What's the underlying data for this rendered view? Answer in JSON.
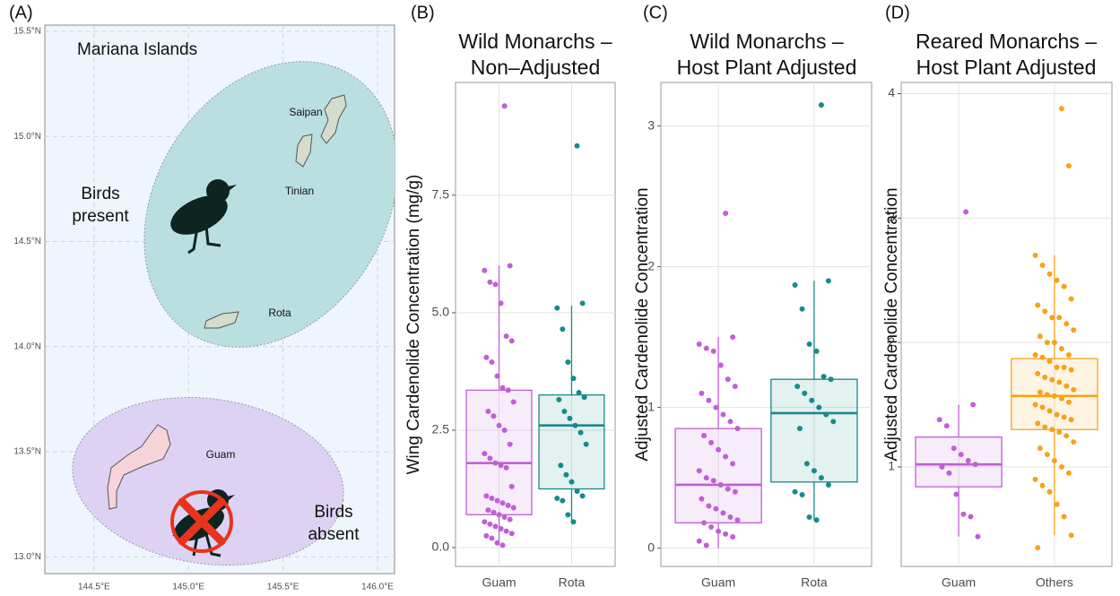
{
  "chart_data": [
    {
      "type": "map",
      "panel_label": "(A)",
      "title": "Mariana Islands",
      "xlim": [
        144.24,
        146.09
      ],
      "ylim": [
        12.92,
        15.53
      ],
      "xticks": [
        {
          "value": 144.5,
          "label": "144.5°E"
        },
        {
          "value": 145.0,
          "label": "145.0°E"
        },
        {
          "value": 145.5,
          "label": "145.5°E"
        },
        {
          "value": 146.0,
          "label": "146.0°E"
        }
      ],
      "yticks": [
        {
          "value": 13.0,
          "label": "13.0°N"
        },
        {
          "value": 13.5,
          "label": "13.5°N"
        },
        {
          "value": 14.0,
          "label": "14.0°N"
        },
        {
          "value": 14.5,
          "label": "14.5°N"
        },
        {
          "value": 15.0,
          "label": "15.0°N"
        },
        {
          "value": 15.5,
          "label": "15.5°N"
        }
      ],
      "grid": true,
      "regions": [
        [
          "Birds",
          "present"
        ],
        [
          "Birds",
          "absent"
        ]
      ],
      "islands": [
        "Saipan",
        "Tinian",
        "Rota",
        "Guam"
      ]
    },
    {
      "type": "box",
      "panel_label": "(B)",
      "title": [
        "Wild Monarchs –",
        "Non–Adjusted"
      ],
      "ylabel": "Wing Cardenolide Concentration (mg/g)",
      "categories": [
        "Guam",
        "Rota"
      ],
      "ylim": [
        -0.4,
        9.9
      ],
      "yticks": [
        {
          "value": 0,
          "label": "0.0"
        },
        2.5,
        {
          "value": 5,
          "label": "5.0"
        },
        7.5
      ],
      "grid": true,
      "boxes": [
        {
          "color": "#c05fd6",
          "low": 0.05,
          "q1": 0.7,
          "median": 1.8,
          "q3": 3.35,
          "high": 6.0,
          "points": [
            9.4,
            6.0,
            5.9,
            5.65,
            5.6,
            5.2,
            4.5,
            4.4,
            4.05,
            3.95,
            3.65,
            3.4,
            3.35,
            3.1,
            2.9,
            2.8,
            2.6,
            2.5,
            2.2,
            2.0,
            1.9,
            1.8,
            1.75,
            1.7,
            1.3,
            1.1,
            1.05,
            1.0,
            0.95,
            0.9,
            0.85,
            0.8,
            0.75,
            0.7,
            0.65,
            0.6,
            0.55,
            0.5,
            0.45,
            0.4,
            0.35,
            0.3,
            0.25,
            0.2,
            0.1,
            0.05
          ]
        },
        {
          "color": "#178a8a",
          "low": 0.55,
          "q1": 1.25,
          "median": 2.6,
          "q3": 3.25,
          "high": 5.15,
          "points": [
            8.55,
            5.2,
            5.1,
            4.65,
            3.95,
            3.6,
            3.3,
            3.2,
            3.15,
            2.9,
            2.75,
            2.6,
            2.45,
            2.2,
            1.75,
            1.55,
            1.4,
            1.2,
            1.1,
            1.05,
            1.0,
            0.7,
            0.55
          ]
        }
      ]
    },
    {
      "type": "box",
      "panel_label": "(C)",
      "title": [
        "Wild Monarchs –",
        "Host Plant Adjusted"
      ],
      "ylabel": "Adjusted Cardenolide Concentration",
      "categories": [
        "Guam",
        "Rota"
      ],
      "ylim": [
        -0.13,
        3.31
      ],
      "yticks": [
        0,
        1,
        2,
        3
      ],
      "grid": true,
      "boxes": [
        {
          "color": "#c05fd6",
          "low": 0.0,
          "q1": 0.18,
          "median": 0.45,
          "q3": 0.85,
          "high": 1.5,
          "points": [
            2.38,
            1.5,
            1.45,
            1.42,
            1.4,
            1.3,
            1.2,
            1.15,
            1.1,
            1.05,
            1.0,
            0.95,
            0.9,
            0.85,
            0.8,
            0.75,
            0.7,
            0.65,
            0.6,
            0.55,
            0.5,
            0.48,
            0.45,
            0.42,
            0.4,
            0.35,
            0.3,
            0.28,
            0.25,
            0.22,
            0.2,
            0.18,
            0.15,
            0.12,
            0.1,
            0.08,
            0.05,
            0.02
          ]
        },
        {
          "color": "#178a8a",
          "low": 0.2,
          "q1": 0.47,
          "median": 0.96,
          "q3": 1.2,
          "high": 1.9,
          "points": [
            3.15,
            1.9,
            1.87,
            1.7,
            1.45,
            1.4,
            1.22,
            1.2,
            1.15,
            1.1,
            1.05,
            1.0,
            0.95,
            0.9,
            0.85,
            0.6,
            0.55,
            0.5,
            0.45,
            0.4,
            0.38,
            0.22,
            0.2
          ]
        }
      ]
    },
    {
      "type": "box",
      "panel_label": "(D)",
      "title": [
        "Reared Monarchs –",
        "Host Plant Adjusted"
      ],
      "ylabel": "Adjusted Cardenolide Concentration",
      "categories": [
        "Guam",
        "Others"
      ],
      "ylim": [
        0.2,
        4.09
      ],
      "yticks": [
        1,
        2,
        3,
        4
      ],
      "grid": true,
      "boxes": [
        {
          "color": "#c05fd6",
          "low": 0.44,
          "q1": 0.84,
          "median": 1.02,
          "q3": 1.24,
          "high": 1.5,
          "points": [
            3.05,
            1.5,
            1.38,
            1.33,
            1.15,
            1.1,
            1.05,
            1.02,
            1.0,
            0.95,
            0.78,
            0.62,
            0.6,
            0.44
          ]
        },
        {
          "color": "#f5a31a",
          "low": 0.45,
          "q1": 1.3,
          "median": 1.57,
          "q3": 1.87,
          "high": 2.7,
          "points": [
            3.88,
            3.42,
            2.7,
            2.62,
            2.55,
            2.5,
            2.45,
            2.35,
            2.3,
            2.25,
            2.2,
            2.2,
            2.15,
            2.1,
            2.05,
            2.0,
            2.0,
            1.95,
            1.9,
            1.9,
            1.88,
            1.85,
            1.8,
            1.8,
            1.78,
            1.75,
            1.72,
            1.7,
            1.68,
            1.65,
            1.62,
            1.6,
            1.58,
            1.57,
            1.55,
            1.52,
            1.5,
            1.48,
            1.45,
            1.42,
            1.4,
            1.38,
            1.35,
            1.32,
            1.3,
            1.28,
            1.25,
            1.2,
            1.15,
            1.1,
            1.05,
            1.0,
            0.95,
            0.9,
            0.85,
            0.8,
            0.7,
            0.6,
            0.45,
            0.35
          ]
        }
      ]
    }
  ]
}
